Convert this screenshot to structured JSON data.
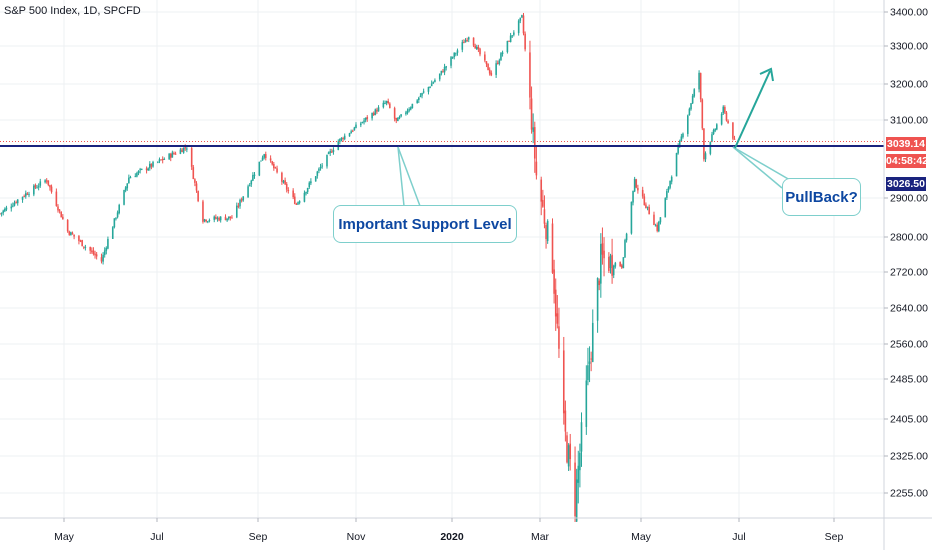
{
  "title": "S&P 500 Index, 1D, SPCFD",
  "chart_data": {
    "type": "candlestick",
    "title": "S&P 500 Index, 1D, SPCFD",
    "ylim": [
      2200,
      3420
    ],
    "y_ticks": [
      3400.0,
      3300.0,
      3200.0,
      3100.0,
      2900.0,
      2800.0,
      2720.0,
      2640.0,
      2560.0,
      2485.0,
      2405.0,
      2325.0,
      2255.0
    ],
    "x_ticks": [
      "May",
      "Jul",
      "Sep",
      "Nov",
      "2020",
      "Mar",
      "May",
      "Jul",
      "Sep"
    ],
    "support_level": 3026.5,
    "last_close": 3039.14,
    "price_labels": {
      "last_close": "3039.14",
      "countdown": "04:58:42",
      "support": "3026.50"
    },
    "close_path": [
      [
        "2019-04-01",
        2860
      ],
      [
        "2019-04-15",
        2905
      ],
      [
        "2019-04-30",
        2945
      ],
      [
        "2019-05-13",
        2815
      ],
      [
        "2019-06-03",
        2745
      ],
      [
        "2019-06-20",
        2950
      ],
      [
        "2019-07-26",
        3025
      ],
      [
        "2019-08-05",
        2845
      ],
      [
        "2019-08-23",
        2850
      ],
      [
        "2019-09-12",
        3010
      ],
      [
        "2019-10-02",
        2885
      ],
      [
        "2019-10-28",
        3040
      ],
      [
        "2019-11-27",
        3150
      ],
      [
        "2019-12-03",
        3095
      ],
      [
        "2019-12-31",
        3230
      ],
      [
        "2020-01-17",
        3330
      ],
      [
        "2020-01-31",
        3225
      ],
      [
        "2020-02-19",
        3385
      ],
      [
        "2020-02-28",
        2955
      ],
      [
        "2020-03-09",
        2745
      ],
      [
        "2020-03-16",
        2385
      ],
      [
        "2020-03-23",
        2237
      ],
      [
        "2020-04-08",
        2750
      ],
      [
        "2020-04-21",
        2735
      ],
      [
        "2020-04-29",
        2940
      ],
      [
        "2020-05-13",
        2820
      ],
      [
        "2020-05-27",
        3035
      ],
      [
        "2020-06-08",
        3230
      ],
      [
        "2020-06-11",
        3000
      ],
      [
        "2020-06-23",
        3130
      ],
      [
        "2020-06-30",
        3039
      ]
    ],
    "annotations": [
      {
        "text": "Important Support Level"
      },
      {
        "text": "PullBack?"
      }
    ],
    "support_line_color": "#1a237e",
    "up_color": "#26a69a",
    "down_color": "#ef5350"
  }
}
